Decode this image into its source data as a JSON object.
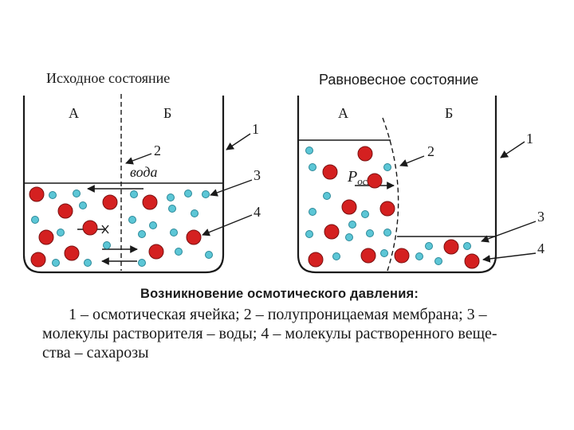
{
  "panels": {
    "initial": {
      "title": "Исходное состояние",
      "label_a": "А",
      "label_b": "Б",
      "water_label": "вода"
    },
    "equilibrium": {
      "title": "Равновесное состояние",
      "label_a": "А",
      "label_b": "Б",
      "pressure_symbol": "P",
      "pressure_subscript": "осм."
    }
  },
  "callouts": {
    "cell": "1",
    "membrane": "2",
    "solvent": "3",
    "solute": "4"
  },
  "colors": {
    "solute": "#d42020",
    "solvent": "#5cc6d6",
    "line": "#1a1a1a"
  },
  "caption": {
    "heading": "Возникновение осмотического давления:",
    "line1": "1 – осмотическая ячейка; 2 – полупроницаемая мембрана; 3 –",
    "line2": "молекулы растворителя – воды; 4 – молекулы растворенного веще-",
    "line3": "ства – сахарозы"
  }
}
